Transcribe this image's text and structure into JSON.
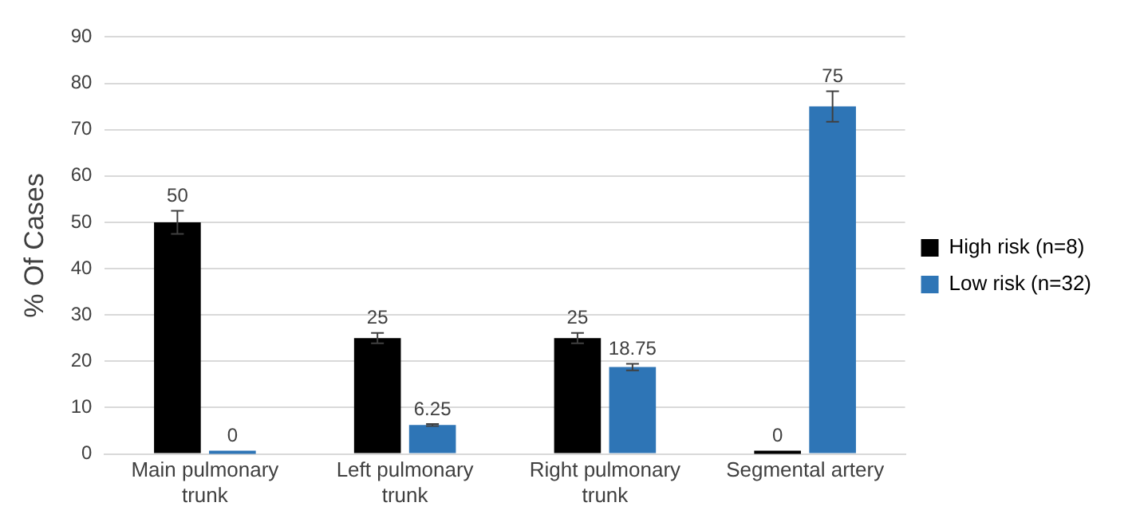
{
  "chart_data": {
    "type": "bar",
    "ylabel": "% Of Cases",
    "categories": [
      "Main pulmonary trunk",
      "Left pulmonary trunk",
      "Right pulmonary trunk",
      "Segmental artery"
    ],
    "series": [
      {
        "name": "High risk (n=8)",
        "color": "#000000",
        "values": [
          50,
          25,
          25,
          0
        ],
        "errors": [
          2.5,
          1.1,
          1.1,
          null
        ]
      },
      {
        "name": "Low risk (n=32)",
        "color": "#2e75b6",
        "values": [
          0,
          6.25,
          18.75,
          75
        ],
        "errors": [
          null,
          0.2,
          0.7,
          3.3
        ]
      }
    ],
    "ylim": [
      0,
      90
    ],
    "yticks": [
      0,
      10,
      20,
      30,
      40,
      50,
      60,
      70,
      80,
      90
    ],
    "grid": "y",
    "legend": "right",
    "data_labels": true
  }
}
